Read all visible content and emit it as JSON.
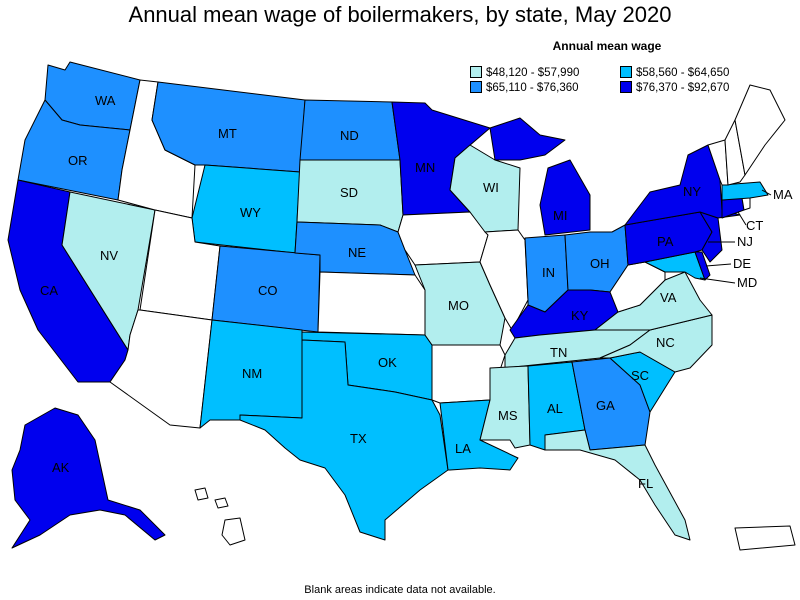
{
  "title": "Annual mean wage of boilermakers, by state, May 2020",
  "legend": {
    "title": "Annual mean wage",
    "items": [
      {
        "label": "$48,120 - $57,990",
        "color": "#b2eeee"
      },
      {
        "label": "$58,560 - $64,650",
        "color": "#00bfff"
      },
      {
        "label": "$65,110 - $76,360",
        "color": "#1e90ff"
      },
      {
        "label": "$76,370 - $92,670",
        "color": "#0000ee"
      }
    ]
  },
  "footnote": "Blank areas indicate data not available.",
  "colors": {
    "no_data": "#ffffff",
    "border": "#000000"
  },
  "state_labels": {
    "WA": "WA",
    "OR": "OR",
    "CA": "CA",
    "NV": "NV",
    "MT": "MT",
    "WY": "WY",
    "CO": "CO",
    "NM": "NM",
    "ND": "ND",
    "SD": "SD",
    "NE": "NE",
    "TX": "TX",
    "OK": "OK",
    "MN": "MN",
    "MO": "MO",
    "WI": "WI",
    "MI": "MI",
    "IN": "IN",
    "OH": "OH",
    "KY": "KY",
    "TN": "TN",
    "MS": "MS",
    "AL": "AL",
    "LA": "LA",
    "GA": "GA",
    "FL": "FL",
    "SC": "SC",
    "NC": "NC",
    "VA": "VA",
    "PA": "PA",
    "NY": "NY",
    "NJ": "NJ",
    "DE": "DE",
    "MD": "MD",
    "CT": "CT",
    "MA": "MA",
    "AK": "AK"
  }
}
